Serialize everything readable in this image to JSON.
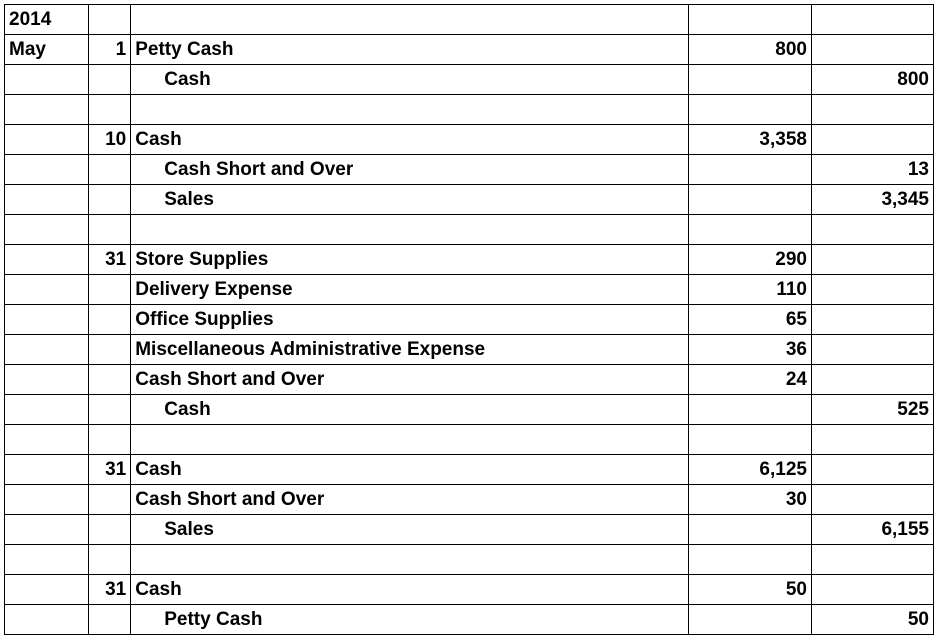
{
  "journal": {
    "rows": [
      {
        "month": "2014",
        "day": "",
        "account": "",
        "debit": "",
        "credit": "",
        "indent": false
      },
      {
        "month": "May",
        "day": "1",
        "account": "Petty Cash",
        "debit": "800",
        "credit": "",
        "indent": false
      },
      {
        "month": "",
        "day": "",
        "account": "Cash",
        "debit": "",
        "credit": "800",
        "indent": true
      },
      {
        "month": "",
        "day": "",
        "account": "",
        "debit": "",
        "credit": "",
        "indent": false
      },
      {
        "month": "",
        "day": "10",
        "account": "Cash",
        "debit": "3,358",
        "credit": "",
        "indent": false
      },
      {
        "month": "",
        "day": "",
        "account": "Cash Short and Over",
        "debit": "",
        "credit": "13",
        "indent": true
      },
      {
        "month": "",
        "day": "",
        "account": "Sales",
        "debit": "",
        "credit": "3,345",
        "indent": true
      },
      {
        "month": "",
        "day": "",
        "account": "",
        "debit": "",
        "credit": "",
        "indent": false
      },
      {
        "month": "",
        "day": "31",
        "account": "Store Supplies",
        "debit": "290",
        "credit": "",
        "indent": false
      },
      {
        "month": "",
        "day": "",
        "account": "Delivery Expense",
        "debit": "110",
        "credit": "",
        "indent": false
      },
      {
        "month": "",
        "day": "",
        "account": "Office Supplies",
        "debit": "65",
        "credit": "",
        "indent": false
      },
      {
        "month": "",
        "day": "",
        "account": "Miscellaneous  Administrative  Expense",
        "debit": "36",
        "credit": "",
        "indent": false
      },
      {
        "month": "",
        "day": "",
        "account": "Cash Short and Over",
        "debit": "24",
        "credit": "",
        "indent": false
      },
      {
        "month": "",
        "day": "",
        "account": "Cash",
        "debit": "",
        "credit": "525",
        "indent": true
      },
      {
        "month": "",
        "day": "",
        "account": "",
        "debit": "",
        "credit": "",
        "indent": false
      },
      {
        "month": "",
        "day": "31",
        "account": "Cash",
        "debit": "6,125",
        "credit": "",
        "indent": false
      },
      {
        "month": "",
        "day": "",
        "account": "Cash Short and Over",
        "debit": "30",
        "credit": "",
        "indent": false
      },
      {
        "month": "",
        "day": "",
        "account": "Sales",
        "debit": "",
        "credit": "6,155",
        "indent": true
      },
      {
        "month": "",
        "day": "",
        "account": "",
        "debit": "",
        "credit": "",
        "indent": false
      },
      {
        "month": "",
        "day": "31",
        "account": "Cash",
        "debit": "50",
        "credit": "",
        "indent": false
      },
      {
        "month": "",
        "day": "",
        "account": "Petty Cash",
        "debit": "",
        "credit": "50",
        "indent": true
      }
    ]
  }
}
